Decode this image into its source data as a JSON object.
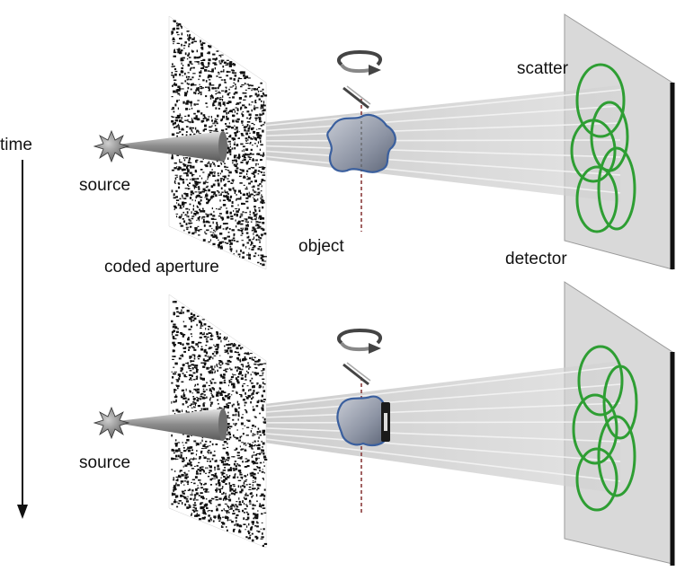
{
  "labels": {
    "time": "time",
    "source_top": "source",
    "source_bottom": "source",
    "coded_aperture": "coded aperture",
    "object": "object",
    "scatter": "scatter",
    "detector": "detector"
  },
  "colors": {
    "scatter_ring": "#2e9e33",
    "detector_face": "#d9d9d9",
    "detector_edge": "#111111",
    "beam": "#cfcfcf",
    "object_outline": "#3a5f9e"
  },
  "icons": {
    "source": "starburst-icon",
    "rotation": "rotation-arrow-icon",
    "axis": "rotation-axis-icon"
  }
}
